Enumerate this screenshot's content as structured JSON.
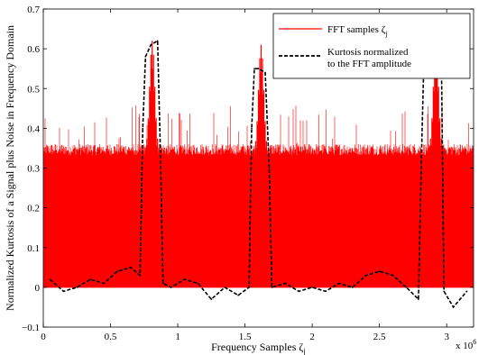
{
  "chart_data": {
    "type": "line",
    "title": "",
    "xlabel": "Frequency Samples ζ",
    "xlabel_subscript": "j",
    "ylabel": "Normalized Kurtosis of a Signal plus Noise in Frequency Domain",
    "x_multiplier": "x 10",
    "x_multiplier_exponent": "6",
    "xlim": [
      0,
      3200000
    ],
    "ylim": [
      -0.1,
      0.7
    ],
    "x_ticks": [
      0,
      500000,
      1000000,
      1500000,
      2000000,
      2500000,
      3000000
    ],
    "x_tick_labels": [
      "0",
      "0.5",
      "1",
      "1.5",
      "2",
      "2.5",
      "3"
    ],
    "y_ticks": [
      -0.1,
      0,
      0.1,
      0.2,
      0.3,
      0.4,
      0.5,
      0.6,
      0.7
    ],
    "y_tick_labels": [
      "−0.1",
      "0",
      "0.1",
      "0.2",
      "0.3",
      "0.4",
      "0.5",
      "0.6",
      "0.7"
    ],
    "grid": false,
    "legend_position": "top-right",
    "series": [
      {
        "name": "FFT samples ζ",
        "name_subscript": "j",
        "color": "#ff0000",
        "style": "solid",
        "noise_floor_range": [
          0,
          0.35
        ],
        "noise_spike_max": 0.46,
        "signal_peaks": [
          {
            "x": 810000,
            "peak": 0.62
          },
          {
            "x": 1620000,
            "peak": 0.61
          },
          {
            "x": 2920000,
            "peak": 0.62
          }
        ]
      },
      {
        "name": "Kurtosis normalized to the FFT amplitude",
        "name_lines": [
          "Kurtosis normalized",
          "to the FFT amplitude"
        ],
        "color": "#000000",
        "style": "dashed",
        "x": [
          50000,
          150000,
          250000,
          350000,
          450000,
          550000,
          650000,
          720000,
          740000,
          760000,
          800000,
          850000,
          870000,
          890000,
          950000,
          1050000,
          1150000,
          1250000,
          1350000,
          1450000,
          1530000,
          1550000,
          1570000,
          1600000,
          1650000,
          1680000,
          1700000,
          1800000,
          1900000,
          2000000,
          2100000,
          2200000,
          2300000,
          2400000,
          2500000,
          2600000,
          2700000,
          2790000,
          2810000,
          2830000,
          2880000,
          2930000,
          2960000,
          2980000,
          3050000,
          3150000
        ],
        "y": [
          0.02,
          -0.01,
          0.0,
          0.02,
          0.01,
          0.04,
          0.05,
          0.03,
          0.4,
          0.58,
          0.61,
          0.62,
          0.35,
          0.01,
          0.0,
          0.02,
          0.01,
          -0.03,
          0.0,
          -0.02,
          0.0,
          0.4,
          0.55,
          0.55,
          0.54,
          0.3,
          0.0,
          0.01,
          -0.01,
          0.0,
          -0.01,
          0.01,
          0.0,
          0.03,
          0.04,
          0.03,
          0.0,
          -0.03,
          0.3,
          0.56,
          0.6,
          0.62,
          0.6,
          -0.01,
          -0.05,
          -0.01
        ]
      }
    ]
  }
}
